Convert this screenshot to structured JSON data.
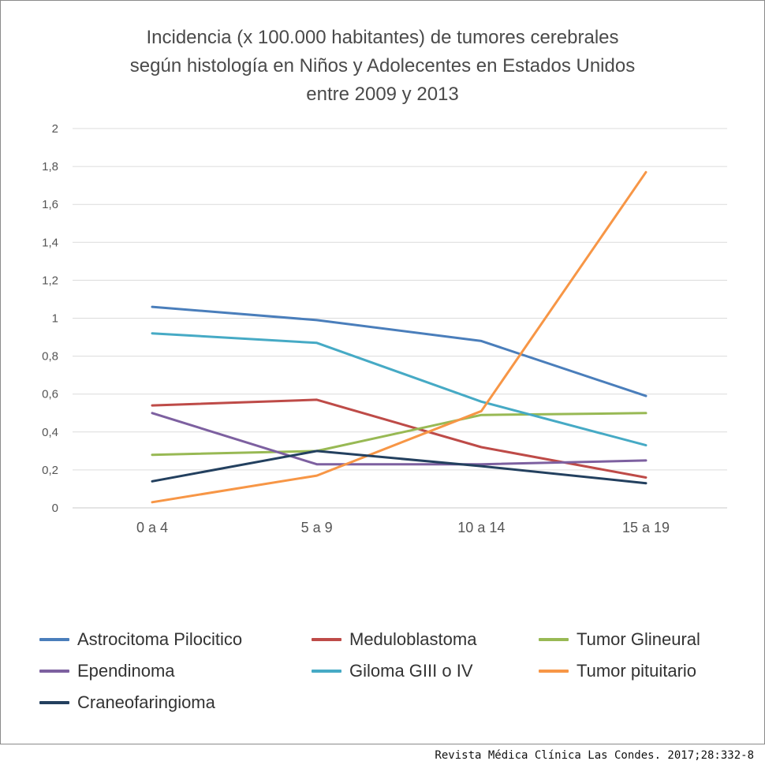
{
  "chart_data": {
    "type": "line",
    "title_lines": [
      "Incidencia  (x 100.000 habitantes)  de  tumores  cerebrales",
      "según  histología  en  Niños  y Adolecentes  en  Estados  Unidos",
      "entre  2009  y  2013"
    ],
    "categories": [
      "0 a 4",
      "5 a 9",
      "10 a 14",
      "15 a 19"
    ],
    "ylim": [
      0,
      2
    ],
    "yticks": [
      "0",
      "0,2",
      "0,4",
      "0,6",
      "0,8",
      "1",
      "1,2",
      "1,4",
      "1,6",
      "1,8",
      "2"
    ],
    "grid": true,
    "legend_position": "bottom",
    "series": [
      {
        "name": "Astrocitoma Pilocitico",
        "color": "#4a7ebb",
        "values": [
          1.06,
          0.99,
          0.88,
          0.59
        ]
      },
      {
        "name": "Meduloblastoma",
        "color": "#be4b48",
        "values": [
          0.54,
          0.57,
          0.32,
          0.16
        ]
      },
      {
        "name": "Tumor Glineural",
        "color": "#98b954",
        "values": [
          0.28,
          0.3,
          0.49,
          0.5
        ]
      },
      {
        "name": "Ependinoma",
        "color": "#7d60a0",
        "values": [
          0.5,
          0.23,
          0.23,
          0.25
        ]
      },
      {
        "name": "Giloma GIII o IV",
        "color": "#46aac5",
        "values": [
          0.92,
          0.87,
          0.56,
          0.33
        ]
      },
      {
        "name": "Tumor pituitario",
        "color": "#f79646",
        "values": [
          0.03,
          0.17,
          0.51,
          1.77
        ]
      },
      {
        "name": "Craneofaringioma",
        "color": "#23405f",
        "values": [
          0.14,
          0.3,
          0.22,
          0.13
        ]
      }
    ]
  },
  "source": "Revista Médica Clínica Las Condes. 2017;28:332-8"
}
